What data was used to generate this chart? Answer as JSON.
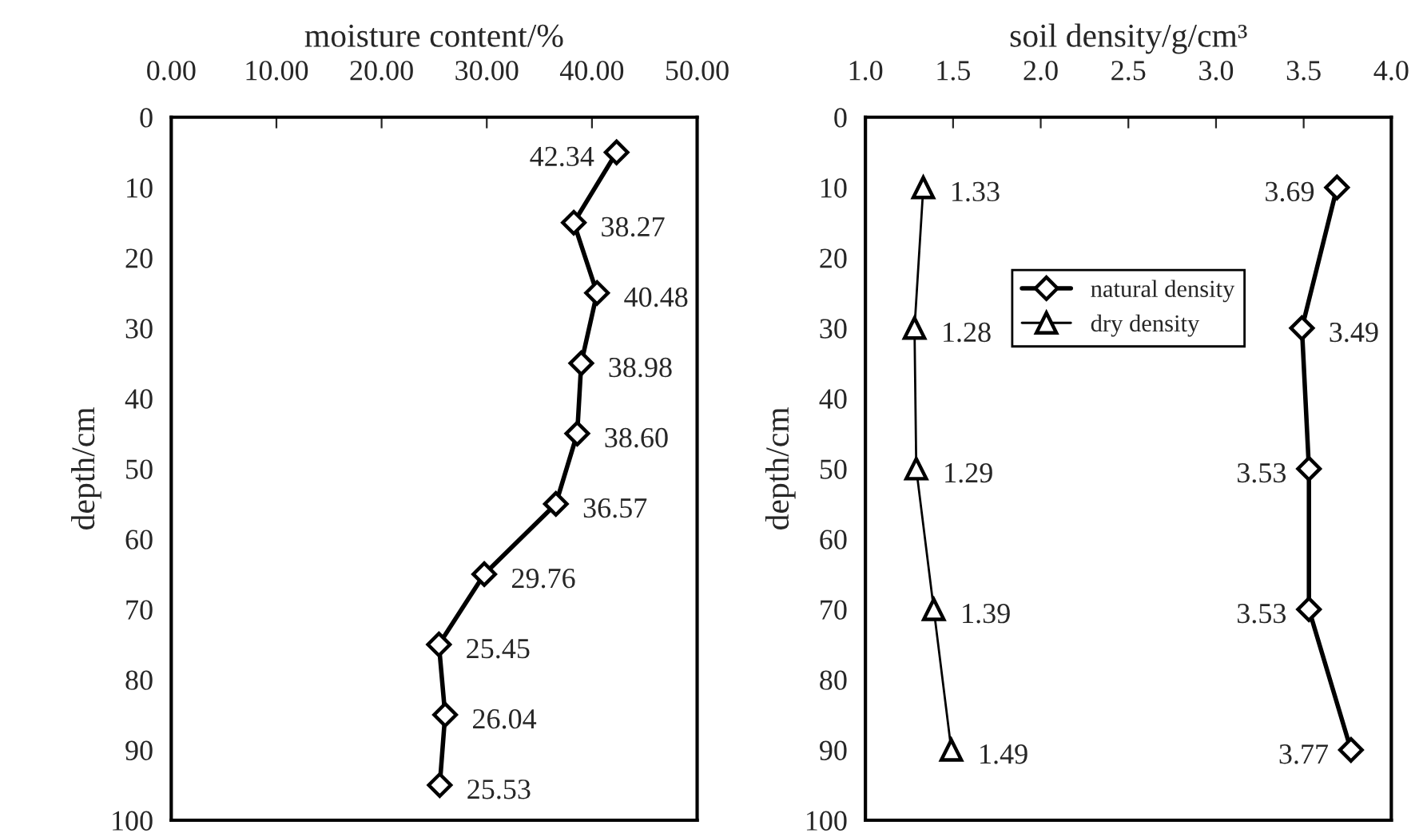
{
  "chart_data": [
    {
      "type": "line",
      "orientation": "horizontal",
      "xlabel": "moisture content/%",
      "ylabel": "depth/cm",
      "xlim": [
        0,
        50
      ],
      "xticks": [
        {
          "value": 0,
          "label": "0.00"
        },
        {
          "value": 10,
          "label": "10.00"
        },
        {
          "value": 20,
          "label": "20.00"
        },
        {
          "value": 30,
          "label": "30.00"
        },
        {
          "value": 40,
          "label": "40.00"
        },
        {
          "value": 50,
          "label": "50.00"
        }
      ],
      "ylim": [
        100,
        0
      ],
      "yticks": [
        0,
        10,
        20,
        30,
        40,
        50,
        60,
        70,
        80,
        90,
        100
      ],
      "grid": false,
      "legend": false,
      "series": [
        {
          "color": "#000000",
          "marker": "diamond",
          "x": [
            5,
            15,
            25,
            35,
            45,
            55,
            65,
            75,
            85,
            95
          ],
          "values": [
            42.34,
            38.27,
            40.48,
            38.98,
            38.6,
            36.57,
            29.76,
            25.45,
            26.04,
            25.53
          ],
          "value_labels": [
            "42.34",
            "38.27",
            "40.48",
            "38.98",
            "38.60",
            "36.57",
            "29.76",
            "25.45",
            "26.04",
            "25.53"
          ]
        }
      ]
    },
    {
      "type": "line",
      "orientation": "horizontal",
      "xlabel": "soil density/g/cm³",
      "ylabel": "depth/cm",
      "xlim": [
        1.0,
        4.0
      ],
      "xticks": [
        {
          "value": 1.0,
          "label": "1.0"
        },
        {
          "value": 1.5,
          "label": "1.5"
        },
        {
          "value": 2.0,
          "label": "2.0"
        },
        {
          "value": 2.5,
          "label": "2.5"
        },
        {
          "value": 3.0,
          "label": "3.0"
        },
        {
          "value": 3.5,
          "label": "3.5"
        },
        {
          "value": 4.0,
          "label": "4.0"
        }
      ],
      "ylim": [
        100,
        0
      ],
      "yticks": [
        0,
        10,
        20,
        30,
        40,
        50,
        60,
        70,
        80,
        90,
        100
      ],
      "grid": false,
      "legend": "top",
      "series": [
        {
          "name": "natural density",
          "color": "#000000",
          "marker": "diamond",
          "x": [
            10,
            30,
            50,
            70,
            90
          ],
          "values": [
            3.69,
            3.49,
            3.53,
            3.53,
            3.77
          ],
          "value_labels": [
            "3.69",
            "3.49",
            "3.53",
            "3.53",
            "3.77"
          ]
        },
        {
          "name": "dry density",
          "color": "#000000",
          "marker": "triangle",
          "x": [
            10,
            30,
            50,
            70,
            90
          ],
          "values": [
            1.33,
            1.28,
            1.29,
            1.39,
            1.49
          ],
          "value_labels": [
            "1.33",
            "1.28",
            "1.29",
            "1.39",
            "1.49"
          ]
        }
      ]
    }
  ]
}
